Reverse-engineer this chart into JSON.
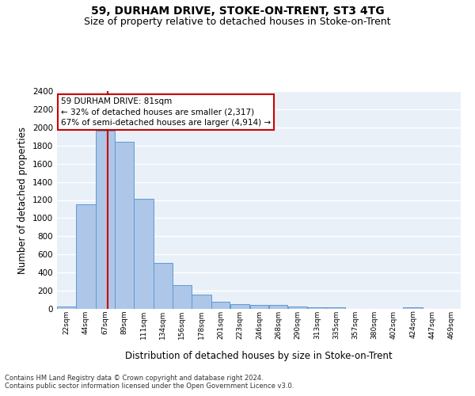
{
  "title": "59, DURHAM DRIVE, STOKE-ON-TRENT, ST3 4TG",
  "subtitle": "Size of property relative to detached houses in Stoke-on-Trent",
  "xlabel": "Distribution of detached houses by size in Stoke-on-Trent",
  "ylabel": "Number of detached properties",
  "bin_labels": [
    "22sqm",
    "44sqm",
    "67sqm",
    "89sqm",
    "111sqm",
    "134sqm",
    "156sqm",
    "178sqm",
    "201sqm",
    "223sqm",
    "246sqm",
    "268sqm",
    "290sqm",
    "313sqm",
    "335sqm",
    "357sqm",
    "380sqm",
    "402sqm",
    "424sqm",
    "447sqm",
    "469sqm"
  ],
  "bin_edges": [
    22,
    44,
    67,
    89,
    111,
    134,
    156,
    178,
    201,
    223,
    246,
    268,
    290,
    313,
    335,
    357,
    380,
    402,
    424,
    447,
    469,
    491
  ],
  "values": [
    30,
    1150,
    1960,
    1840,
    1210,
    510,
    265,
    155,
    80,
    50,
    45,
    40,
    25,
    20,
    15,
    0,
    0,
    0,
    20,
    0,
    0
  ],
  "bar_color": "#aec6e8",
  "bar_edge_color": "#5b9bd5",
  "property_size": 81,
  "vline_color": "#cc0000",
  "annotation_line1": "59 DURHAM DRIVE: 81sqm",
  "annotation_line2": "← 32% of detached houses are smaller (2,317)",
  "annotation_line3": "67% of semi-detached houses are larger (4,914) →",
  "annotation_box_color": "#ffffff",
  "annotation_box_edge": "#cc0000",
  "ylim": [
    0,
    2400
  ],
  "yticks": [
    0,
    200,
    400,
    600,
    800,
    1000,
    1200,
    1400,
    1600,
    1800,
    2000,
    2200,
    2400
  ],
  "bg_color": "#eaf0f8",
  "grid_color": "#ffffff",
  "footnote1": "Contains HM Land Registry data © Crown copyright and database right 2024.",
  "footnote2": "Contains public sector information licensed under the Open Government Licence v3.0.",
  "title_fontsize": 10,
  "subtitle_fontsize": 9,
  "xlabel_fontsize": 8.5,
  "ylabel_fontsize": 8.5
}
